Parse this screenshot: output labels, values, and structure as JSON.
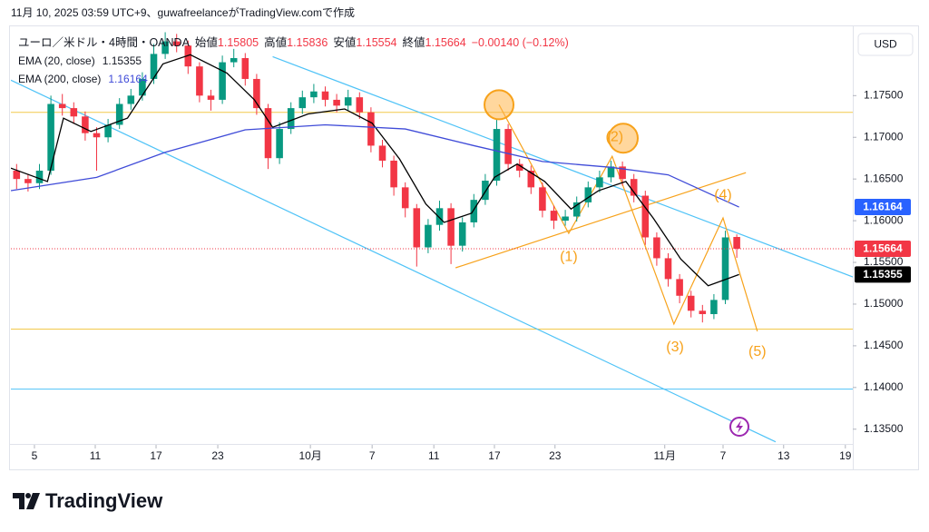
{
  "header": {
    "caption": "11月 10, 2025 03:59 UTC+9、guwafreelanceがTradingView.comで作成"
  },
  "footer": {
    "brand": "TradingView"
  },
  "chart_data": {
    "type": "candlestick",
    "legend": {
      "symbol": "ユーロ／米ドル・4時間・OANDA",
      "open_label": "始値",
      "open": "1.15805",
      "high_label": "高値",
      "high": "1.15836",
      "low_label": "安値",
      "low": "1.15554",
      "close_label": "終値",
      "close": "1.15664",
      "change": "−0.00140 (−0.12%)"
    },
    "currency": "USD",
    "up_color": "#089981",
    "down_color": "#f23645",
    "xlim": [
      -0.5,
      73.15
    ],
    "xticks": [
      {
        "value": 1.56,
        "label": "5"
      },
      {
        "value": 6.88,
        "label": "11"
      },
      {
        "value": 12.2,
        "label": "17"
      },
      {
        "value": 17.6,
        "label": "23"
      },
      {
        "value": 25.7,
        "label": "10月"
      },
      {
        "value": 31.1,
        "label": "7"
      },
      {
        "value": 36.5,
        "label": "11"
      },
      {
        "value": 41.8,
        "label": "17"
      },
      {
        "value": 47.1,
        "label": "23"
      },
      {
        "value": 56.7,
        "label": "11月"
      },
      {
        "value": 61.8,
        "label": "7"
      },
      {
        "value": 67.1,
        "label": "13"
      },
      {
        "value": 72.5,
        "label": "19"
      }
    ],
    "ylim": [
      1.1304,
      1.1832
    ],
    "yticks": [
      {
        "value": 1.175,
        "label": "1.17500"
      },
      {
        "value": 1.17,
        "label": "1.17000"
      },
      {
        "value": 1.165,
        "label": "1.16500"
      },
      {
        "value": 1.16,
        "label": "1.16000"
      },
      {
        "value": 1.155,
        "label": "1.15500"
      },
      {
        "value": 1.15,
        "label": "1.15000"
      },
      {
        "value": 1.145,
        "label": "1.14500"
      },
      {
        "value": 1.14,
        "label": "1.14000"
      },
      {
        "value": 1.135,
        "label": "1.13500"
      }
    ],
    "grid": false,
    "open": [
      1.166,
      1.165,
      1.1645,
      1.166,
      1.174,
      1.1735,
      1.1725,
      1.1705,
      1.17,
      1.1715,
      1.174,
      1.175,
      1.177,
      1.18,
      1.1815,
      1.181,
      1.1785,
      1.175,
      1.1745,
      1.179,
      1.1795,
      1.177,
      1.1735,
      1.1675,
      1.171,
      1.1735,
      1.1748,
      1.1755,
      1.1745,
      1.1738,
      1.1748,
      1.173,
      1.169,
      1.1672,
      1.164,
      1.1615,
      1.1568,
      1.1595,
      1.1615,
      1.157,
      1.1598,
      1.1625,
      1.1648,
      1.171,
      1.1668,
      1.166,
      1.164,
      1.1612,
      1.16,
      1.1605,
      1.1622,
      1.164,
      1.1652,
      1.1665,
      1.165,
      1.163,
      1.158,
      1.1555,
      1.153,
      1.151,
      1.1492,
      1.1488,
      1.1505,
      1.15805
    ],
    "high": [
      1.1668,
      1.1656,
      1.1668,
      1.175,
      1.1752,
      1.1742,
      1.1731,
      1.1712,
      1.1722,
      1.1747,
      1.1758,
      1.1778,
      1.1812,
      1.1826,
      1.1824,
      1.1816,
      1.179,
      1.1757,
      1.1798,
      1.1806,
      1.1801,
      1.1776,
      1.174,
      1.1718,
      1.1742,
      1.1756,
      1.1764,
      1.1761,
      1.1752,
      1.1757,
      1.1754,
      1.1736,
      1.1697,
      1.1678,
      1.1646,
      1.162,
      1.1602,
      1.1624,
      1.1621,
      1.1604,
      1.1632,
      1.1656,
      1.1722,
      1.1716,
      1.1674,
      1.1666,
      1.1646,
      1.1618,
      1.1613,
      1.1629,
      1.1647,
      1.166,
      1.1672,
      1.1671,
      1.1656,
      1.1636,
      1.1586,
      1.1561,
      1.1536,
      1.1516,
      1.1499,
      1.1512,
      1.1588,
      1.15836
    ],
    "low": [
      1.1638,
      1.1635,
      1.1638,
      1.1655,
      1.1726,
      1.1716,
      1.1696,
      1.166,
      1.1694,
      1.171,
      1.1733,
      1.1744,
      1.1764,
      1.1794,
      1.1802,
      1.1776,
      1.1742,
      1.1732,
      1.174,
      1.1784,
      1.1762,
      1.1727,
      1.1662,
      1.1668,
      1.1704,
      1.1728,
      1.1741,
      1.1737,
      1.173,
      1.1732,
      1.1722,
      1.1682,
      1.1664,
      1.163,
      1.1604,
      1.1545,
      1.1561,
      1.1588,
      1.1548,
      1.1563,
      1.1592,
      1.1619,
      1.1642,
      1.166,
      1.1652,
      1.1632,
      1.1604,
      1.159,
      1.1594,
      1.1599,
      1.1616,
      1.1634,
      1.1646,
      1.1642,
      1.1622,
      1.1571,
      1.1546,
      1.1521,
      1.1501,
      1.1484,
      1.1478,
      1.1482,
      1.15,
      1.15554
    ],
    "close": [
      1.165,
      1.1645,
      1.166,
      1.174,
      1.1735,
      1.1725,
      1.1705,
      1.17,
      1.1715,
      1.174,
      1.175,
      1.177,
      1.18,
      1.1815,
      1.181,
      1.1785,
      1.175,
      1.1745,
      1.179,
      1.1795,
      1.177,
      1.1735,
      1.1675,
      1.171,
      1.1735,
      1.1748,
      1.1755,
      1.1745,
      1.1738,
      1.1748,
      1.173,
      1.169,
      1.1672,
      1.164,
      1.1615,
      1.1568,
      1.1595,
      1.1615,
      1.157,
      1.1598,
      1.1625,
      1.1648,
      1.171,
      1.1668,
      1.166,
      1.164,
      1.1612,
      1.16,
      1.1605,
      1.1622,
      1.164,
      1.1652,
      1.1665,
      1.165,
      1.163,
      1.158,
      1.1555,
      1.153,
      1.151,
      1.1492,
      1.1488,
      1.1505,
      1.158,
      1.15664
    ],
    "series": [
      {
        "name": "EMA (20, close)",
        "value_label": "1.15355",
        "color": "#000000",
        "x": [
          -0.5,
          2.7,
          4.1,
          6.5,
          9.7,
          12.8,
          15.2,
          18.4,
          20.8,
          22.4,
          25.5,
          28.7,
          31.1,
          33.5,
          35.8,
          37.4,
          39.8,
          41.8,
          43.8,
          46.2,
          48.5,
          50.9,
          53.3,
          55.7,
          58.1,
          60.5,
          63.2
        ],
        "values": [
          1.1663,
          1.1647,
          1.1723,
          1.1707,
          1.1723,
          1.1788,
          1.1799,
          1.1777,
          1.1745,
          1.1712,
          1.1728,
          1.1734,
          1.1717,
          1.1674,
          1.162,
          1.1598,
          1.1609,
          1.1652,
          1.1668,
          1.1647,
          1.1614,
          1.1636,
          1.1647,
          1.1603,
          1.1554,
          1.1522,
          1.15355
        ]
      },
      {
        "name": "EMA (200, close)",
        "value_label": "1.16164",
        "color": "#3f4bd8",
        "x": [
          -0.5,
          7,
          13,
          20,
          27,
          34,
          40,
          46,
          52,
          57,
          61,
          63.2
        ],
        "values": [
          1.1636,
          1.1652,
          1.1682,
          1.1709,
          1.1715,
          1.171,
          1.169,
          1.1671,
          1.1664,
          1.1655,
          1.163,
          1.16164
        ]
      }
    ],
    "price_labels": [
      {
        "value": 1.16164,
        "label": "1.16164",
        "color": "#2962ff"
      },
      {
        "value": 1.15664,
        "label": "1.15664",
        "color": "#f23645"
      },
      {
        "value": 1.15355,
        "label": "1.15355",
        "color": "#000000"
      }
    ],
    "hlines": [
      {
        "value": 1.173,
        "color": "#f2c94c"
      },
      {
        "value": 1.147,
        "color": "#f2c94c"
      },
      {
        "value": 1.1398,
        "color": "#4fc3f7"
      }
    ],
    "trendlines": [
      {
        "color": "#4fc3f7",
        "x": [
          22.4,
          73.15
        ],
        "prices": [
          1.17967,
          1.15326
        ]
      },
      {
        "color": "#4fc3f7",
        "x": [
          -0.5,
          66.4
        ],
        "prices": [
          1.17685,
          1.13348
        ]
      },
      {
        "color": "#f7a21b",
        "x": [
          38.4,
          63.8
        ],
        "prices": [
          1.15435,
          1.16576
        ]
      },
      {
        "color": "#f7a21b",
        "x": [
          42.2,
          48.3,
          52.1,
          57.5,
          61.8,
          64.8
        ],
        "prices": [
          1.17391,
          1.15848,
          1.16772,
          1.14761,
          1.16033,
          1.14674
        ]
      }
    ],
    "circles": [
      {
        "x": 42.2,
        "price": 1.1739
      },
      {
        "x": 53.07,
        "price": 1.16989
      }
    ],
    "wave_labels": [
      {
        "text": "(1)",
        "x": 48.3,
        "price": 1.15565
      },
      {
        "text": "(2)",
        "x": 52.3,
        "price": 1.16999
      },
      {
        "text": "(3)",
        "x": 57.6,
        "price": 1.14478
      },
      {
        "text": "(4)",
        "x": 61.8,
        "price": 1.16304
      },
      {
        "text": "(5)",
        "x": 64.8,
        "price": 1.14424
      }
    ]
  }
}
